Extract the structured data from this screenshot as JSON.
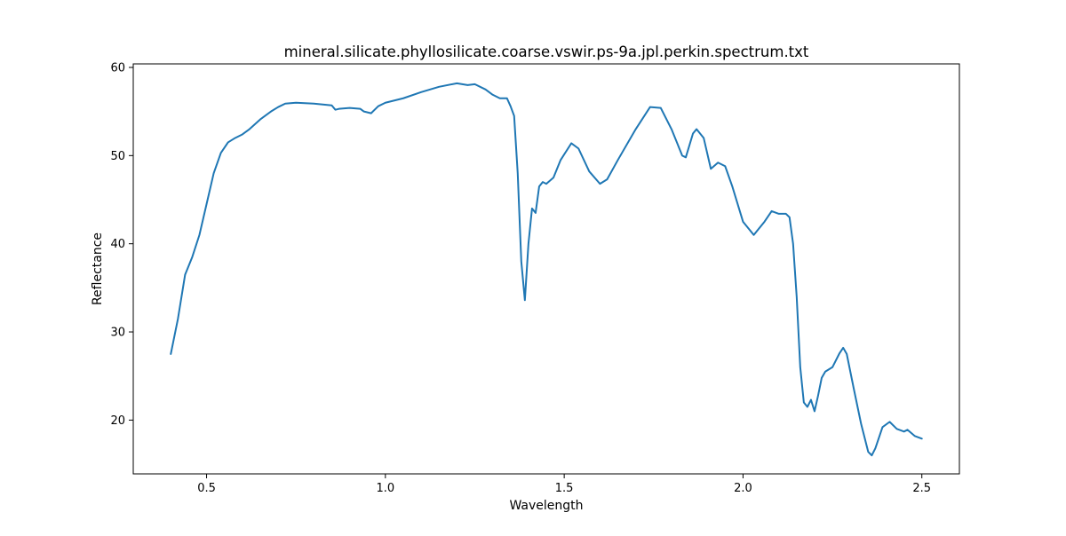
{
  "chart_data": {
    "type": "line",
    "title": "mineral.silicate.phyllosilicate.coarse.vswir.ps-9a.jpl.perkin.spectrum.txt",
    "xlabel": "Wavelength",
    "ylabel": "Reflectance",
    "xlim": [
      0.295,
      2.605
    ],
    "ylim": [
      13.9,
      60.4
    ],
    "xticks": [
      0.5,
      1.0,
      1.5,
      2.0,
      2.5
    ],
    "xtick_labels": [
      "0.5",
      "1.0",
      "1.5",
      "2.0",
      "2.5"
    ],
    "yticks": [
      20,
      30,
      40,
      50,
      60
    ],
    "ytick_labels": [
      "20",
      "30",
      "40",
      "50",
      "60"
    ],
    "grid": false,
    "line_color": "#1f77b4",
    "series": [
      {
        "x": [
          0.4,
          0.42,
          0.44,
          0.46,
          0.48,
          0.5,
          0.52,
          0.54,
          0.56,
          0.58,
          0.6,
          0.62,
          0.65,
          0.68,
          0.7,
          0.72,
          0.75,
          0.8,
          0.85,
          0.86,
          0.87,
          0.9,
          0.93,
          0.94,
          0.96,
          0.98,
          1.0,
          1.05,
          1.1,
          1.15,
          1.2,
          1.23,
          1.25,
          1.28,
          1.3,
          1.32,
          1.34,
          1.35,
          1.36,
          1.37,
          1.38,
          1.39,
          1.4,
          1.41,
          1.42,
          1.43,
          1.44,
          1.45,
          1.47,
          1.49,
          1.52,
          1.54,
          1.57,
          1.6,
          1.62,
          1.65,
          1.7,
          1.74,
          1.77,
          1.8,
          1.83,
          1.84,
          1.86,
          1.87,
          1.89,
          1.91,
          1.93,
          1.95,
          1.97,
          2.0,
          2.03,
          2.06,
          2.08,
          2.1,
          2.12,
          2.13,
          2.14,
          2.15,
          2.16,
          2.17,
          2.18,
          2.19,
          2.2,
          2.21,
          2.22,
          2.23,
          2.25,
          2.27,
          2.28,
          2.29,
          2.31,
          2.33,
          2.35,
          2.36,
          2.37,
          2.39,
          2.41,
          2.43,
          2.45,
          2.46,
          2.48,
          2.5
        ],
        "y": [
          27.5,
          31.5,
          36.5,
          38.5,
          41.0,
          44.5,
          48.0,
          50.3,
          51.5,
          52.0,
          52.4,
          53.0,
          54.1,
          55.0,
          55.5,
          55.9,
          56.0,
          55.9,
          55.7,
          55.2,
          55.3,
          55.4,
          55.3,
          55.0,
          54.8,
          55.6,
          56.0,
          56.5,
          57.2,
          57.8,
          58.2,
          58.0,
          58.1,
          57.5,
          56.9,
          56.5,
          56.5,
          55.6,
          54.5,
          48.0,
          38.0,
          33.6,
          40.0,
          44.0,
          43.5,
          46.5,
          47.0,
          46.8,
          47.5,
          49.5,
          51.4,
          50.8,
          48.2,
          46.8,
          47.3,
          49.5,
          53.0,
          55.5,
          55.4,
          53.0,
          50.0,
          49.8,
          52.5,
          53.0,
          52.0,
          48.5,
          49.2,
          48.8,
          46.5,
          42.5,
          41.0,
          42.5,
          43.7,
          43.4,
          43.4,
          43.0,
          40.0,
          34.0,
          26.0,
          22.0,
          21.5,
          22.3,
          21.0,
          22.8,
          24.8,
          25.5,
          26.0,
          27.6,
          28.2,
          27.5,
          23.5,
          19.6,
          16.4,
          16.0,
          16.8,
          19.2,
          19.8,
          19.0,
          18.7,
          18.9,
          18.2,
          17.9
        ]
      }
    ]
  }
}
